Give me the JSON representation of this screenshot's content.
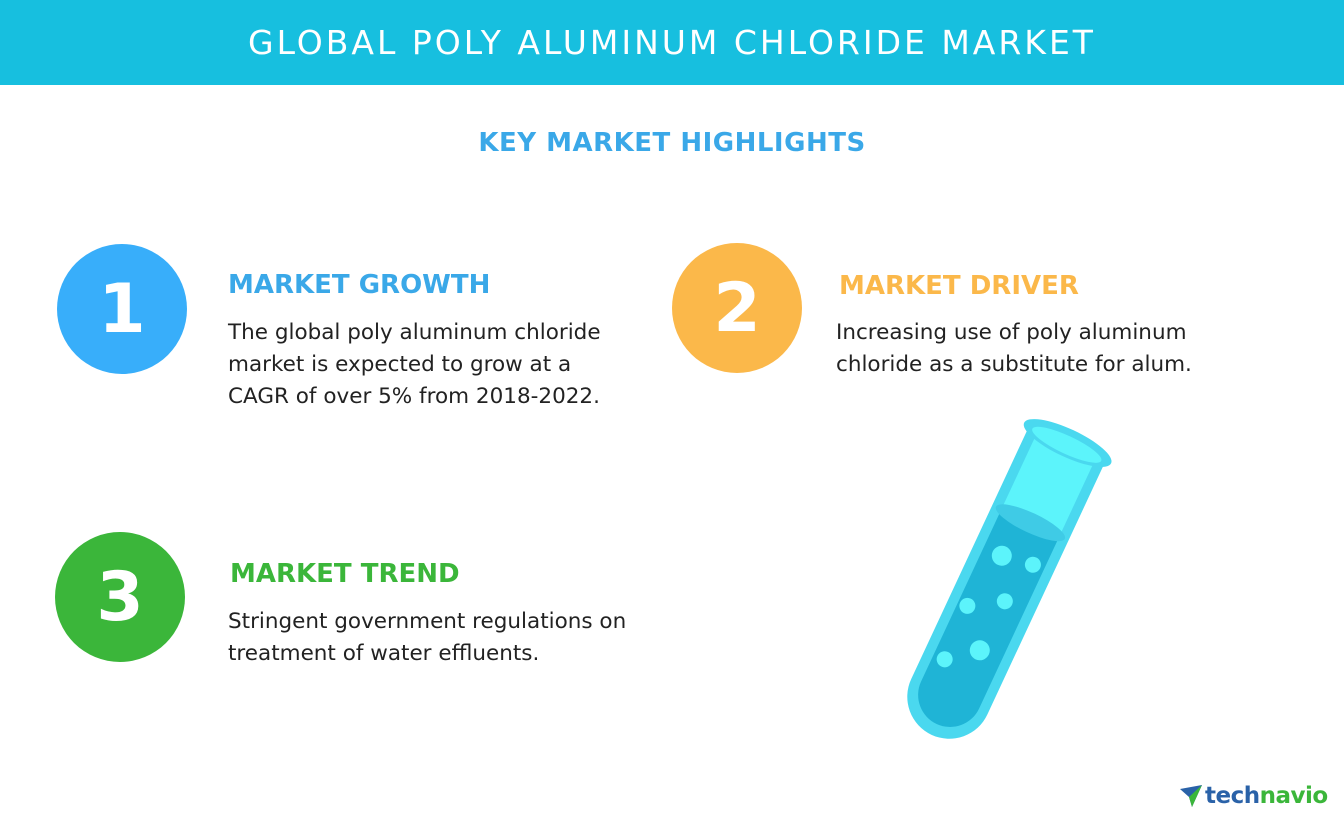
{
  "header": {
    "title": "GLOBAL POLY ALUMINUM CHLORIDE MARKET"
  },
  "subtitle": "KEY MARKET HIGHLIGHTS",
  "highlights": [
    {
      "number": "1",
      "heading": "MARKET GROWTH",
      "lines": [
        "The global poly aluminum chloride",
        "market is expected to grow at a",
        "CAGR of over 5% from 2018-2022."
      ],
      "color": "#38aefa"
    },
    {
      "number": "2",
      "heading": "MARKET DRIVER",
      "lines": [
        "Increasing use of poly aluminum",
        "chloride as a substitute for alum."
      ],
      "color": "#fbb84a"
    },
    {
      "number": "3",
      "heading": "MARKET TREND",
      "lines": [
        "Stringent government regulations on",
        "treatment of water effluents."
      ],
      "color": "#3bb63a"
    }
  ],
  "logo": {
    "part1": "tech",
    "part2": "navio"
  },
  "colors": {
    "header_bg": "#17bfdf",
    "subtitle": "#3aa8e8",
    "tube_outline": "#4ad8ef",
    "tube_liquid": "#1fb4d6",
    "tube_glass": "#5cf4fb"
  },
  "icons": [
    "test-tube-icon",
    "technavio-logo-icon"
  ]
}
